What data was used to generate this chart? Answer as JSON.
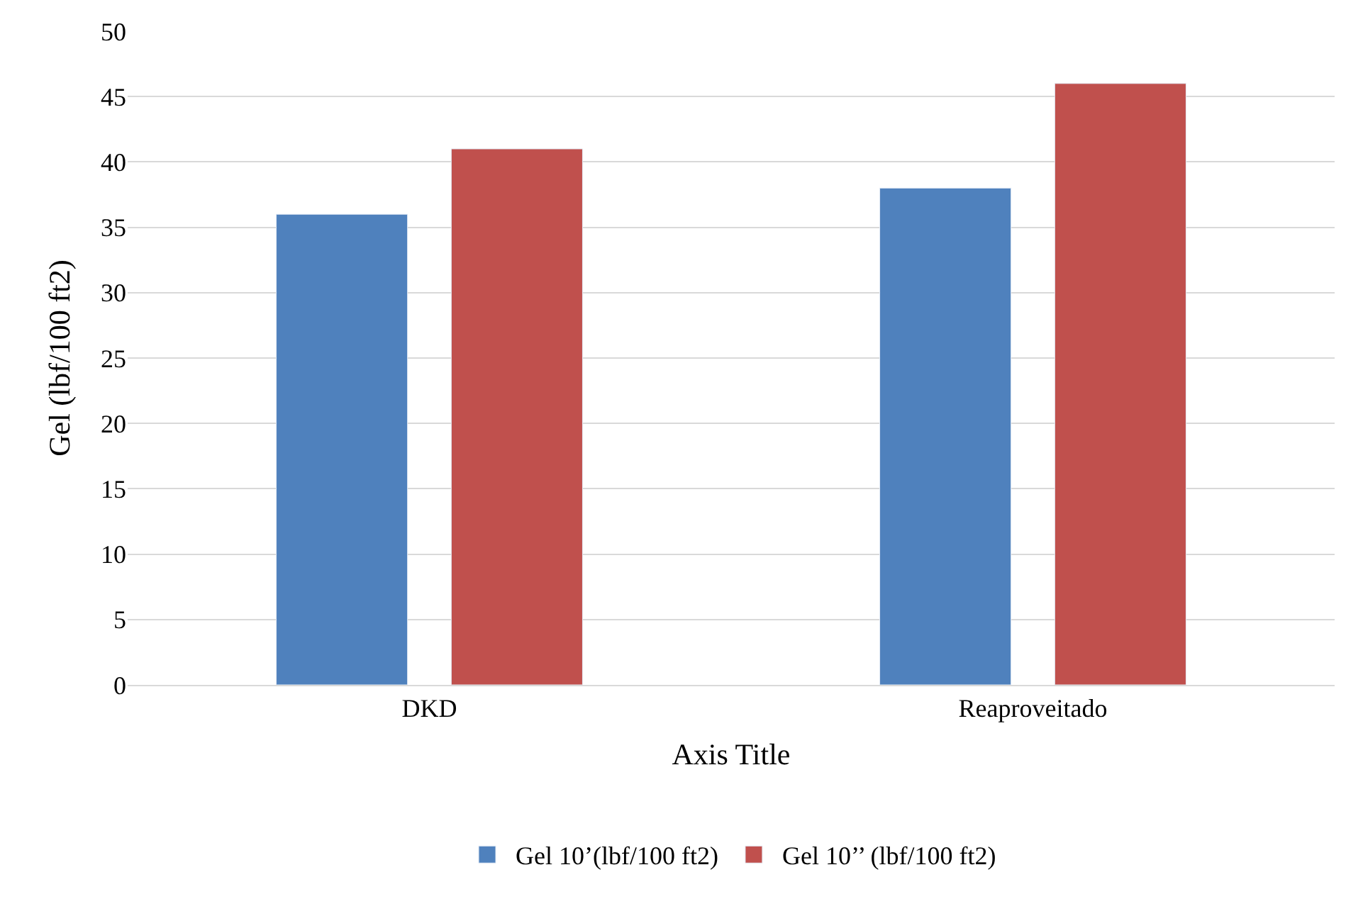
{
  "chart_data": {
    "type": "bar",
    "xlabel": "Axis Title",
    "ylabel": "Gel (lbf/100 ft2)",
    "categories": [
      "DKD",
      "Reaproveitado"
    ],
    "series": [
      {
        "name": "Gel 10’(lbf/100 ft2)",
        "color": "#4f81bd",
        "values": [
          36,
          38
        ]
      },
      {
        "name": "Gel 10’’ (lbf/100 ft2)",
        "color": "#c0504d",
        "values": [
          41,
          46
        ]
      }
    ],
    "ylim": [
      0,
      50
    ],
    "yticks": [
      0,
      5,
      10,
      15,
      20,
      25,
      30,
      35,
      40,
      45,
      50
    ],
    "grid": "y",
    "legend": "bottom"
  }
}
